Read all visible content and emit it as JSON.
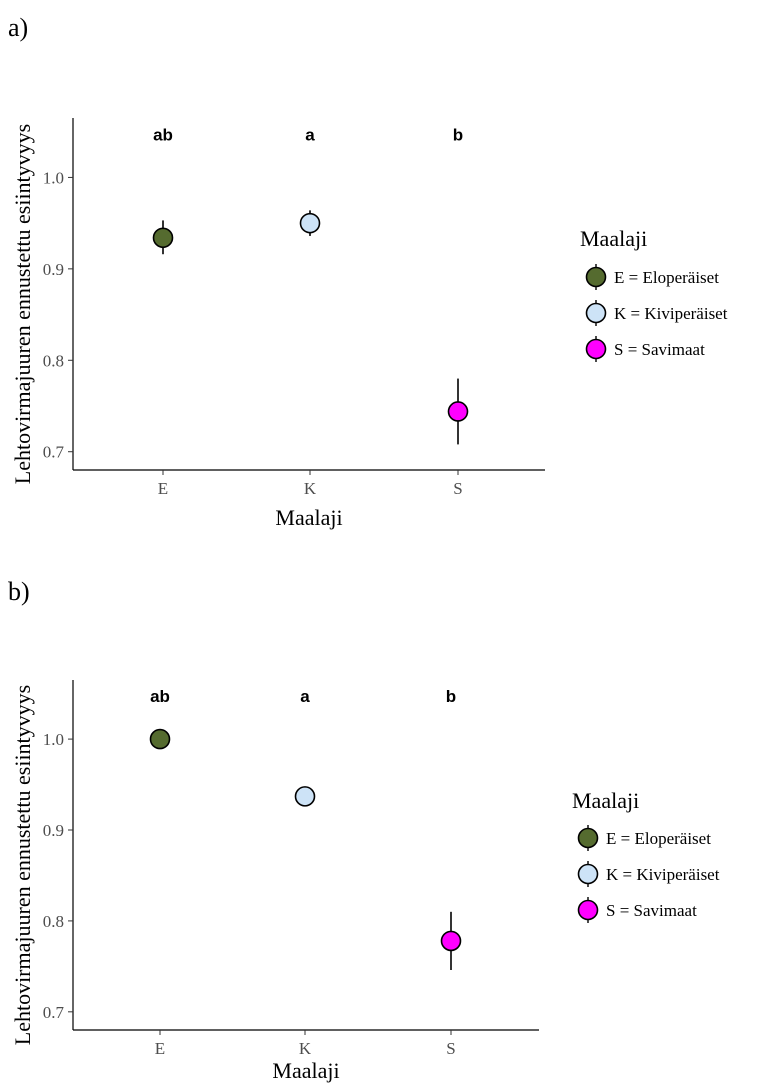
{
  "chart_data": [
    {
      "panel": "a)",
      "type": "scatter",
      "title": "",
      "xlabel": "Maalaji",
      "ylabel": "Lehtovirmajuuren ennustettu esiintyvyys",
      "ylim": [
        0.68,
        1.065
      ],
      "yticks": [
        "0.7",
        "0.8",
        "0.9",
        "1.0"
      ],
      "categories": [
        "E",
        "K",
        "S"
      ],
      "values": [
        0.934,
        0.95,
        0.744
      ],
      "lower": [
        0.916,
        0.936,
        0.708
      ],
      "upper": [
        0.953,
        0.964,
        0.78
      ],
      "significance": [
        "ab",
        "a",
        "b"
      ],
      "grid": false,
      "legend_position": "right",
      "legend": {
        "title": "Maalaji",
        "entries": [
          "E = Eloperäiset",
          "K = Kiviperäiset",
          "S = Savimaat"
        ]
      }
    },
    {
      "panel": "b)",
      "type": "scatter",
      "title": "",
      "xlabel": "Maalaji",
      "ylabel": "Lehtovirmajuuren ennustettu esiintyvyys",
      "ylim": [
        0.68,
        1.065
      ],
      "yticks": [
        "0.7",
        "0.8",
        "0.9",
        "1.0"
      ],
      "categories": [
        "E",
        "K",
        "S"
      ],
      "values": [
        1.0,
        0.937,
        0.778
      ],
      "lower": [
        1.0,
        0.937,
        0.746
      ],
      "upper": [
        1.0,
        0.937,
        0.81
      ],
      "significance": [
        "ab",
        "a",
        "b"
      ],
      "grid": false,
      "legend_position": "right",
      "legend": {
        "title": "Maalaji",
        "entries": [
          "E = Eloperäiset",
          "K = Kiviperäiset",
          "S = Savimaat"
        ]
      }
    }
  ],
  "colors": {
    "E": "#556b2f",
    "K": "#cde3f7",
    "S": "#ff00ff",
    "point_outline": "#000000",
    "axis": "#000000"
  }
}
